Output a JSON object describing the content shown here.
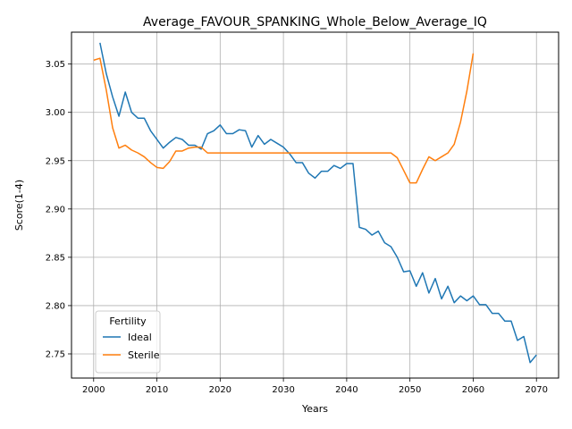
{
  "chart_data": {
    "type": "line",
    "title": "Average_FAVOUR_SPANKING_Whole_Below_Average_IQ",
    "xlabel": "Years",
    "ylabel": "Score(1-4)",
    "xlim": [
      1996.5,
      2073.5
    ],
    "ylim": [
      2.725,
      3.083
    ],
    "xticks": [
      2000,
      2010,
      2020,
      2030,
      2040,
      2050,
      2060,
      2070
    ],
    "yticks": [
      2.75,
      2.8,
      2.85,
      2.9,
      2.95,
      3.0,
      3.05
    ],
    "grid": true,
    "legend": {
      "title": "Fertility",
      "placement": "lower-left"
    },
    "series": [
      {
        "name": "Ideal",
        "color": "#1f77b4",
        "x": [
          2001,
          2002,
          2003,
          2004,
          2005,
          2006,
          2007,
          2008,
          2009,
          2010,
          2011,
          2012,
          2013,
          2014,
          2015,
          2016,
          2017,
          2018,
          2019,
          2020,
          2021,
          2022,
          2023,
          2024,
          2025,
          2026,
          2027,
          2028,
          2029,
          2030,
          2031,
          2032,
          2033,
          2034,
          2035,
          2036,
          2037,
          2038,
          2039,
          2040,
          2041,
          2042,
          2043,
          2044,
          2045,
          2046,
          2047,
          2048,
          2049,
          2050,
          2051,
          2052,
          2053,
          2054,
          2055,
          2056,
          2057,
          2058,
          2059,
          2060,
          2061,
          2062,
          2063,
          2064,
          2065,
          2066,
          2067,
          2068,
          2069,
          2070
        ],
        "y": [
          3.072,
          3.04,
          3.016,
          2.996,
          3.021,
          3.0,
          2.994,
          2.994,
          2.981,
          2.972,
          2.963,
          2.969,
          2.974,
          2.972,
          2.966,
          2.966,
          2.962,
          2.978,
          2.981,
          2.987,
          2.978,
          2.978,
          2.982,
          2.981,
          2.964,
          2.976,
          2.967,
          2.972,
          2.968,
          2.964,
          2.957,
          2.948,
          2.948,
          2.937,
          2.932,
          2.939,
          2.939,
          2.945,
          2.942,
          2.947,
          2.947,
          2.881,
          2.879,
          2.873,
          2.877,
          2.865,
          2.861,
          2.85,
          2.835,
          2.836,
          2.82,
          2.834,
          2.813,
          2.828,
          2.807,
          2.82,
          2.803,
          2.81,
          2.805,
          2.81,
          2.801,
          2.801,
          2.792,
          2.792,
          2.784,
          2.784,
          2.764,
          2.768,
          2.741,
          2.749
        ]
      },
      {
        "name": "Sterile",
        "color": "#ff7f0e",
        "x": [
          2000,
          2001,
          2002,
          2003,
          2004,
          2005,
          2006,
          2007,
          2008,
          2009,
          2010,
          2011,
          2012,
          2013,
          2014,
          2015,
          2016,
          2017,
          2018,
          2019,
          2020,
          2021,
          2022,
          2023,
          2024,
          2025,
          2026,
          2027,
          2028,
          2029,
          2030,
          2031,
          2032,
          2033,
          2034,
          2035,
          2036,
          2037,
          2038,
          2039,
          2040,
          2041,
          2042,
          2043,
          2044,
          2045,
          2046,
          2047,
          2048,
          2049,
          2050,
          2051,
          2052,
          2053,
          2054,
          2055,
          2056,
          2057,
          2058,
          2059,
          2060
        ],
        "y": [
          3.054,
          3.056,
          3.023,
          2.984,
          2.963,
          2.966,
          2.961,
          2.958,
          2.954,
          2.948,
          2.943,
          2.942,
          2.949,
          2.96,
          2.96,
          2.963,
          2.964,
          2.964,
          2.958,
          2.958,
          2.958,
          2.958,
          2.958,
          2.958,
          2.958,
          2.958,
          2.958,
          2.958,
          2.958,
          2.958,
          2.958,
          2.958,
          2.958,
          2.958,
          2.958,
          2.958,
          2.958,
          2.958,
          2.958,
          2.958,
          2.958,
          2.958,
          2.958,
          2.958,
          2.958,
          2.958,
          2.958,
          2.958,
          2.953,
          2.94,
          2.927,
          2.927,
          2.941,
          2.954,
          2.95,
          2.954,
          2.958,
          2.967,
          2.99,
          3.022,
          3.061
        ]
      }
    ]
  }
}
